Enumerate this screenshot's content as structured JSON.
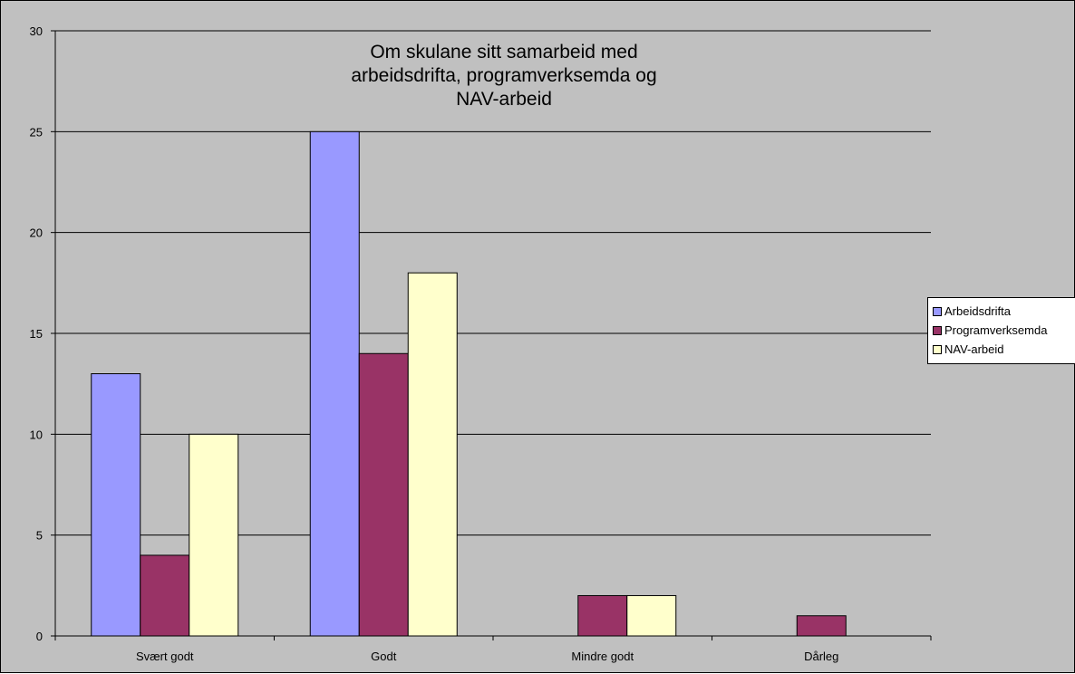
{
  "chart_data": {
    "type": "bar",
    "title_lines": [
      "Om skulane sitt samarbeid med",
      "arbeidsdrifta, programverksemda og",
      "NAV-arbeid"
    ],
    "categories": [
      "Svært godt",
      "Godt",
      "Mindre godt",
      "Dårleg"
    ],
    "series": [
      {
        "name": "Arbeidsdrifta",
        "color": "#9999ff",
        "values": [
          13,
          25,
          0,
          0
        ]
      },
      {
        "name": "Programverksemda",
        "color": "#993366",
        "values": [
          4,
          14,
          2,
          1
        ]
      },
      {
        "name": "NAV-arbeid",
        "color": "#ffffcc",
        "values": [
          10,
          18,
          2,
          0
        ]
      }
    ],
    "ylim": [
      0,
      30
    ],
    "yticks": [
      0,
      5,
      10,
      15,
      20,
      25,
      30
    ],
    "grid": true,
    "legend_position": "right",
    "plot_background": "#c0c0c0"
  }
}
